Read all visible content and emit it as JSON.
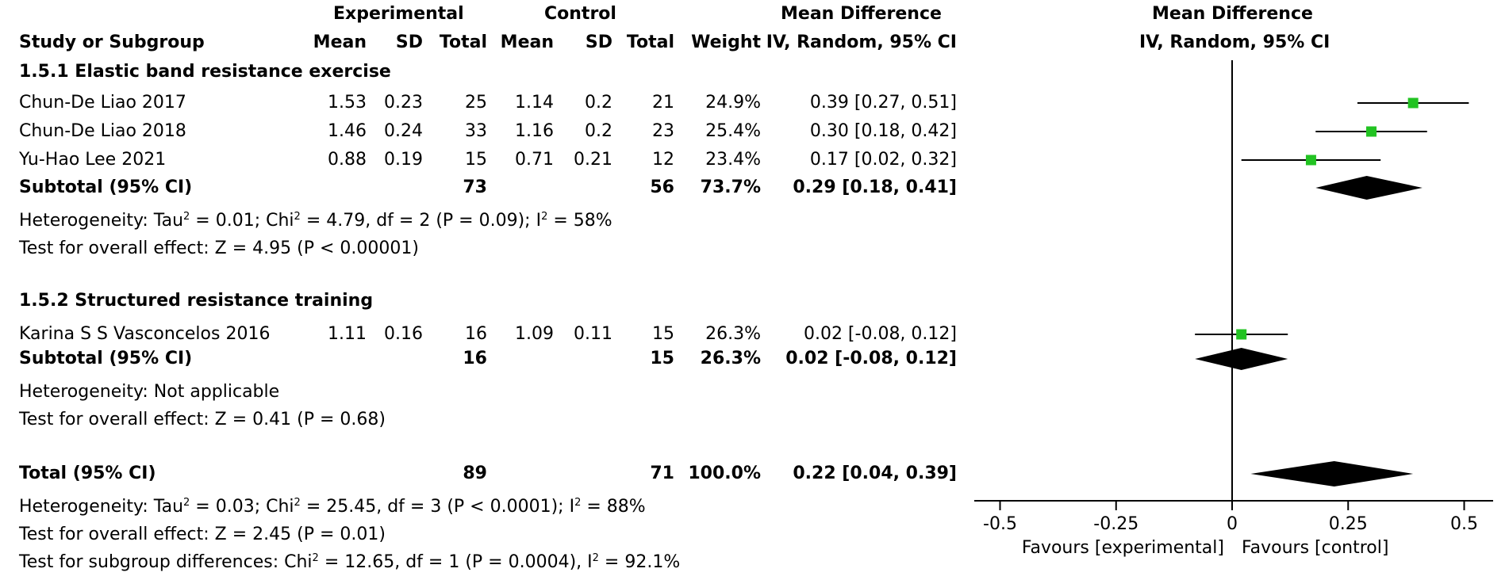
{
  "header": {
    "experimental_group": "Experimental",
    "control_group": "Control",
    "effect_title": "Mean Difference",
    "columns": {
      "study": "Study or Subgroup",
      "exp_mean": "Mean",
      "exp_sd": "SD",
      "exp_total": "Total",
      "ctl_mean": "Mean",
      "ctl_sd": "SD",
      "ctl_total": "Total",
      "weight": "Weight",
      "ci": "IV, Random, 95% CI"
    },
    "plot_title": "Mean Difference",
    "plot_subtitle": "IV, Random, 95% CI"
  },
  "subgroups": [
    {
      "title": "1.5.1 Elastic band resistance exercise",
      "studies": [
        {
          "name": "Chun-De Liao 2017",
          "exp_mean": "1.53",
          "exp_sd": "0.23",
          "exp_total": "25",
          "ctl_mean": "1.14",
          "ctl_sd": "0.2",
          "ctl_total": "21",
          "weight": "24.9%",
          "ci": "0.39 [0.27, 0.51]"
        },
        {
          "name": "Chun-De Liao 2018",
          "exp_mean": "1.46",
          "exp_sd": "0.24",
          "exp_total": "33",
          "ctl_mean": "1.16",
          "ctl_sd": "0.2",
          "ctl_total": "23",
          "weight": "25.4%",
          "ci": "0.30 [0.18, 0.42]"
        },
        {
          "name": "Yu-Hao Lee 2021",
          "exp_mean": "0.88",
          "exp_sd": "0.19",
          "exp_total": "15",
          "ctl_mean": "0.71",
          "ctl_sd": "0.21",
          "ctl_total": "12",
          "weight": "23.4%",
          "ci": "0.17 [0.02, 0.32]"
        }
      ],
      "subtotal": {
        "label": "Subtotal (95% CI)",
        "exp_total": "73",
        "ctl_total": "56",
        "weight": "73.7%",
        "ci": "0.29 [0.18, 0.41]"
      },
      "heterogeneity": {
        "prefix": "Heterogeneity: Tau",
        "p1": " = 0.01; Chi",
        "p2": " = 4.79, df = 2 (P = 0.09); I",
        "p3": " = 58%"
      },
      "overall": "Test for overall effect: Z = 4.95 (P < 0.00001)"
    },
    {
      "title": "1.5.2 Structured resistance training",
      "studies": [
        {
          "name": "Karina S S Vasconcelos  2016",
          "exp_mean": "1.11",
          "exp_sd": "0.16",
          "exp_total": "16",
          "ctl_mean": "1.09",
          "ctl_sd": "0.11",
          "ctl_total": "15",
          "weight": "26.3%",
          "ci": "0.02 [-0.08, 0.12]"
        }
      ],
      "subtotal": {
        "label": "Subtotal (95% CI)",
        "exp_total": "16",
        "ctl_total": "15",
        "weight": "26.3%",
        "ci": "0.02 [-0.08, 0.12]"
      },
      "heterogeneity_text": "Heterogeneity: Not applicable",
      "overall": "Test for overall effect: Z = 0.41 (P = 0.68)"
    }
  ],
  "total": {
    "label": "Total (95% CI)",
    "exp_total": "89",
    "ctl_total": "71",
    "weight": "100.0%",
    "ci": "0.22 [0.04, 0.39]",
    "heterogeneity": {
      "prefix": "Heterogeneity: Tau",
      "p1": " = 0.03; Chi",
      "p2": " = 25.45, df = 3 (P < 0.0001); I",
      "p3": " = 88%"
    },
    "overall": "Test for overall effect: Z = 2.45 (P = 0.01)",
    "subgroup_diff": {
      "prefix": "Test for subgroup differences: Chi",
      "p1": " = 12.65, df = 1 (P = 0.0004), I",
      "p2": " = 92.1%"
    },
    "sup": "2"
  },
  "chart_data": {
    "type": "forest",
    "title": "Mean Difference",
    "subtitle": "IV, Random, 95% CI",
    "xlim": [
      -0.5,
      0.5
    ],
    "ticks": [
      -0.5,
      -0.25,
      0,
      0.25,
      0.5
    ],
    "tick_labels": [
      "-0.5",
      "-0.25",
      "0",
      "0.25",
      "0.5"
    ],
    "xlabel_left": "Favours [experimental]",
    "xlabel_right": "Favours [control]",
    "studies": [
      {
        "name": "Chun-De Liao 2017",
        "md": 0.39,
        "lo": 0.27,
        "hi": 0.51
      },
      {
        "name": "Chun-De Liao 2018",
        "md": 0.3,
        "lo": 0.18,
        "hi": 0.42
      },
      {
        "name": "Yu-Hao Lee 2021",
        "md": 0.17,
        "lo": 0.02,
        "hi": 0.32
      },
      {
        "name": "Karina S S Vasconcelos  2016",
        "md": 0.02,
        "lo": -0.08,
        "hi": 0.12
      }
    ],
    "pooled": [
      {
        "name": "Subtotal 1.5.1",
        "md": 0.29,
        "lo": 0.18,
        "hi": 0.41
      },
      {
        "name": "Subtotal 1.5.2",
        "md": 0.02,
        "lo": -0.08,
        "hi": 0.12
      },
      {
        "name": "Total",
        "md": 0.22,
        "lo": 0.04,
        "hi": 0.39
      }
    ],
    "colors": {
      "marker": "#22c322",
      "line": "#000000",
      "diamond": "#000000"
    }
  }
}
